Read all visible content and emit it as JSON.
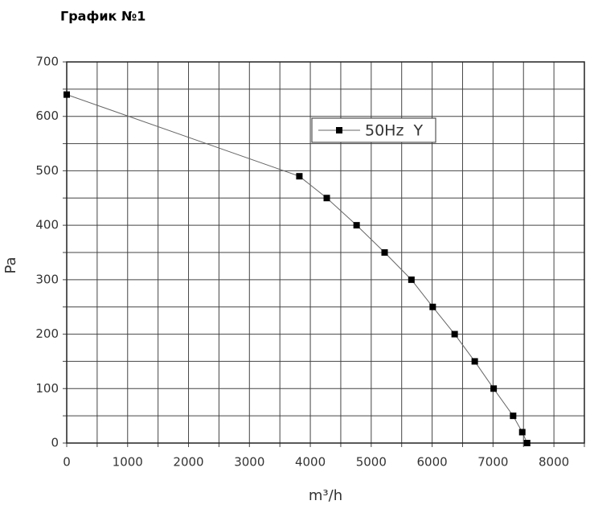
{
  "chart_data": {
    "type": "line",
    "title": "График №1",
    "xlabel": "m³/h",
    "ylabel": "Pa",
    "x": [
      0,
      3820,
      4270,
      4760,
      5220,
      5660,
      6010,
      6370,
      6700,
      7010,
      7330,
      7480,
      7560
    ],
    "series": [
      {
        "name": "50Hz  Y",
        "color": "#000000",
        "values": [
          640,
          490,
          450,
          400,
          350,
          300,
          250,
          200,
          150,
          100,
          50,
          20,
          0
        ]
      }
    ],
    "xlim": [
      0,
      8500
    ],
    "xticks": [
      0,
      1000,
      2000,
      3000,
      4000,
      5000,
      6000,
      7000,
      8000
    ],
    "xminorticks": [
      500,
      1500,
      2500,
      3500,
      4500,
      5500,
      6500,
      7500,
      8500
    ],
    "ylim": [
      0,
      700
    ],
    "yticks": [
      0,
      100,
      200,
      300,
      400,
      500,
      600,
      700
    ],
    "yminorticks": [
      50,
      150,
      250,
      350,
      450,
      550,
      650
    ],
    "grid": true,
    "legend": "upper center"
  }
}
